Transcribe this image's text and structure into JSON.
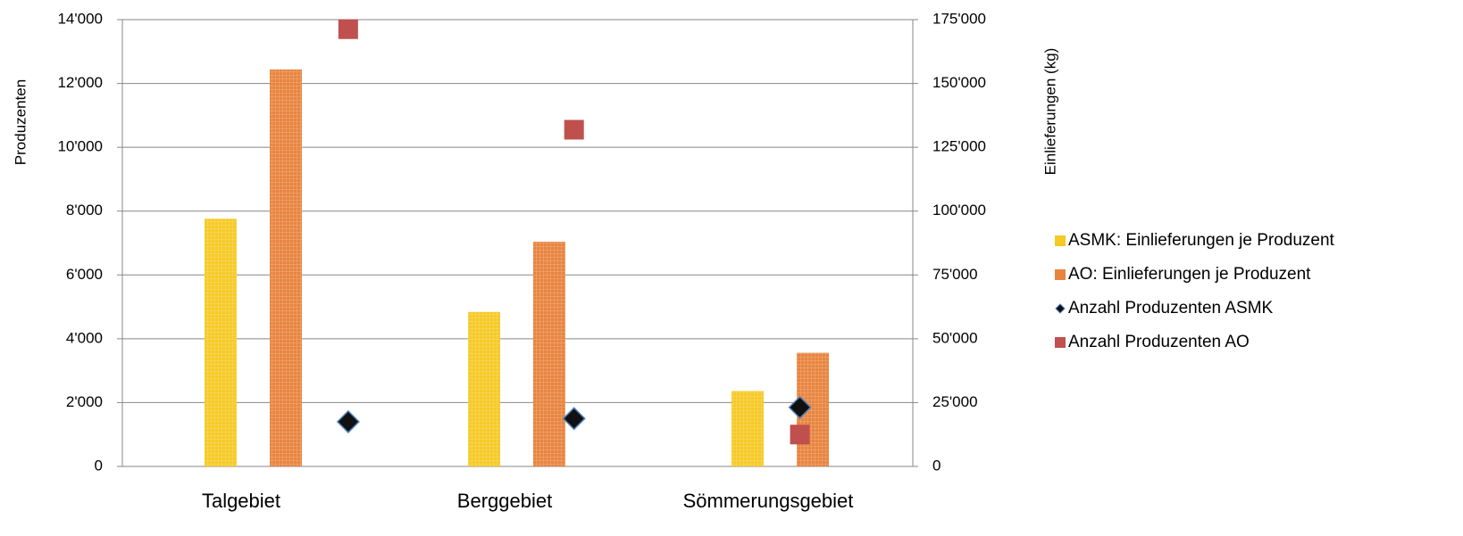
{
  "chart_data": {
    "type": "bar",
    "categories": [
      "Talgebiet",
      "Berggebiet",
      "Sömmerungsgebiet"
    ],
    "y_label": "Produzenten",
    "y2_label": "Einlieferungen (kg)",
    "ylim": [
      0,
      14000
    ],
    "yticks": [
      0,
      {
        "value": 2000,
        "label": "2'000"
      },
      {
        "value": 4000,
        "label": "4'000"
      },
      {
        "value": 6000,
        "label": "6'000"
      },
      {
        "value": 8000,
        "label": "8'000"
      },
      {
        "value": 10000,
        "label": "10'000"
      },
      {
        "value": 12000,
        "label": "12'000"
      },
      {
        "value": 14000,
        "label": "14'000"
      }
    ],
    "y2lim": [
      0,
      175000
    ],
    "y2ticks": [
      0,
      {
        "value": 25000,
        "label": "25'000"
      },
      {
        "value": 50000,
        "label": "50'000"
      },
      {
        "value": 75000,
        "label": "75'000"
      },
      {
        "value": 100000,
        "label": "100'000"
      },
      {
        "value": 125000,
        "label": "125'000"
      },
      {
        "value": 150000,
        "label": "150'000"
      },
      {
        "value": 175000,
        "label": "175'000"
      }
    ],
    "grid": true,
    "legend": "right",
    "series": [
      {
        "name": "ASMK: Einlieferungen je Produzent",
        "type": "bar",
        "axis": "y2",
        "color": "#f6c925",
        "values": [
          97000,
          60500,
          29500
        ]
      },
      {
        "name": "AO: Einlieferungen je Produzent",
        "type": "bar",
        "axis": "y2",
        "color": "#e8843f",
        "values": [
          155500,
          88000,
          44500
        ]
      },
      {
        "name": "Anzahl Produzenten ASMK",
        "type": "diamond",
        "axis": "y",
        "color": "#111111",
        "values": [
          1400,
          1500,
          1850
        ]
      },
      {
        "name": "Anzahl Produzenten AO",
        "type": "square",
        "axis": "y",
        "color": "#c0504d",
        "values": [
          13700,
          10550,
          1000
        ]
      }
    ]
  }
}
